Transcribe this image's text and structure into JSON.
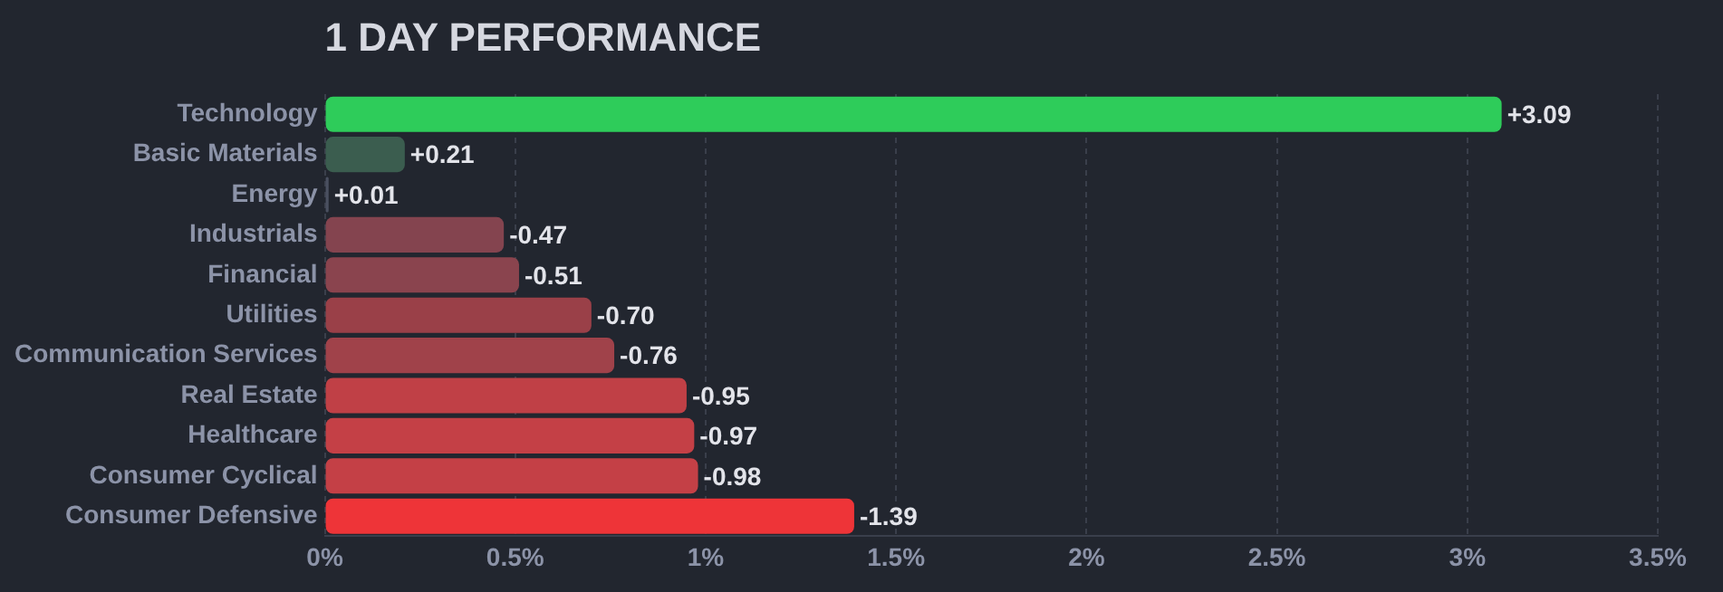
{
  "chart_data": {
    "type": "bar",
    "orientation": "horizontal",
    "title": "1 DAY PERFORMANCE",
    "categories": [
      "Technology",
      "Basic Materials",
      "Energy",
      "Industrials",
      "Financial",
      "Utilities",
      "Communication Services",
      "Real Estate",
      "Healthcare",
      "Consumer Cyclical",
      "Consumer Defensive"
    ],
    "values": [
      3.09,
      0.21,
      0.01,
      -0.47,
      -0.51,
      -0.7,
      -0.76,
      -0.95,
      -0.97,
      -0.98,
      -1.39
    ],
    "base": [
      0,
      0,
      0,
      0.47,
      0.51,
      0.7,
      0.76,
      0.95,
      0.97,
      0.98,
      1.39
    ],
    "value_labels": [
      "+3.09",
      "+0.21",
      "+0.01",
      "-0.47",
      "-0.51",
      "-0.70",
      "-0.76",
      "-0.95",
      "-0.97",
      "-0.98",
      "-1.39"
    ],
    "colors": [
      "#2ecc5a",
      "#3b5d4f",
      "#4a5060",
      "#84444f",
      "#8a444e",
      "#9a4048",
      "#a0424a",
      "#c04046",
      "#c44046",
      "#c44046",
      "#ee3438"
    ],
    "xlim": [
      0,
      3.5
    ],
    "xticks": [
      {
        "value": 0,
        "label": "0%"
      },
      {
        "value": 0.5,
        "label": "0.5%"
      },
      {
        "value": 1,
        "label": "1%"
      },
      {
        "value": 1.5,
        "label": "1.5%"
      },
      {
        "value": 2,
        "label": "2%"
      },
      {
        "value": 2.5,
        "label": "2.5%"
      },
      {
        "value": 3,
        "label": "3%"
      },
      {
        "value": 3.5,
        "label": "3.5%"
      }
    ],
    "grid": "x",
    "legend": false
  }
}
